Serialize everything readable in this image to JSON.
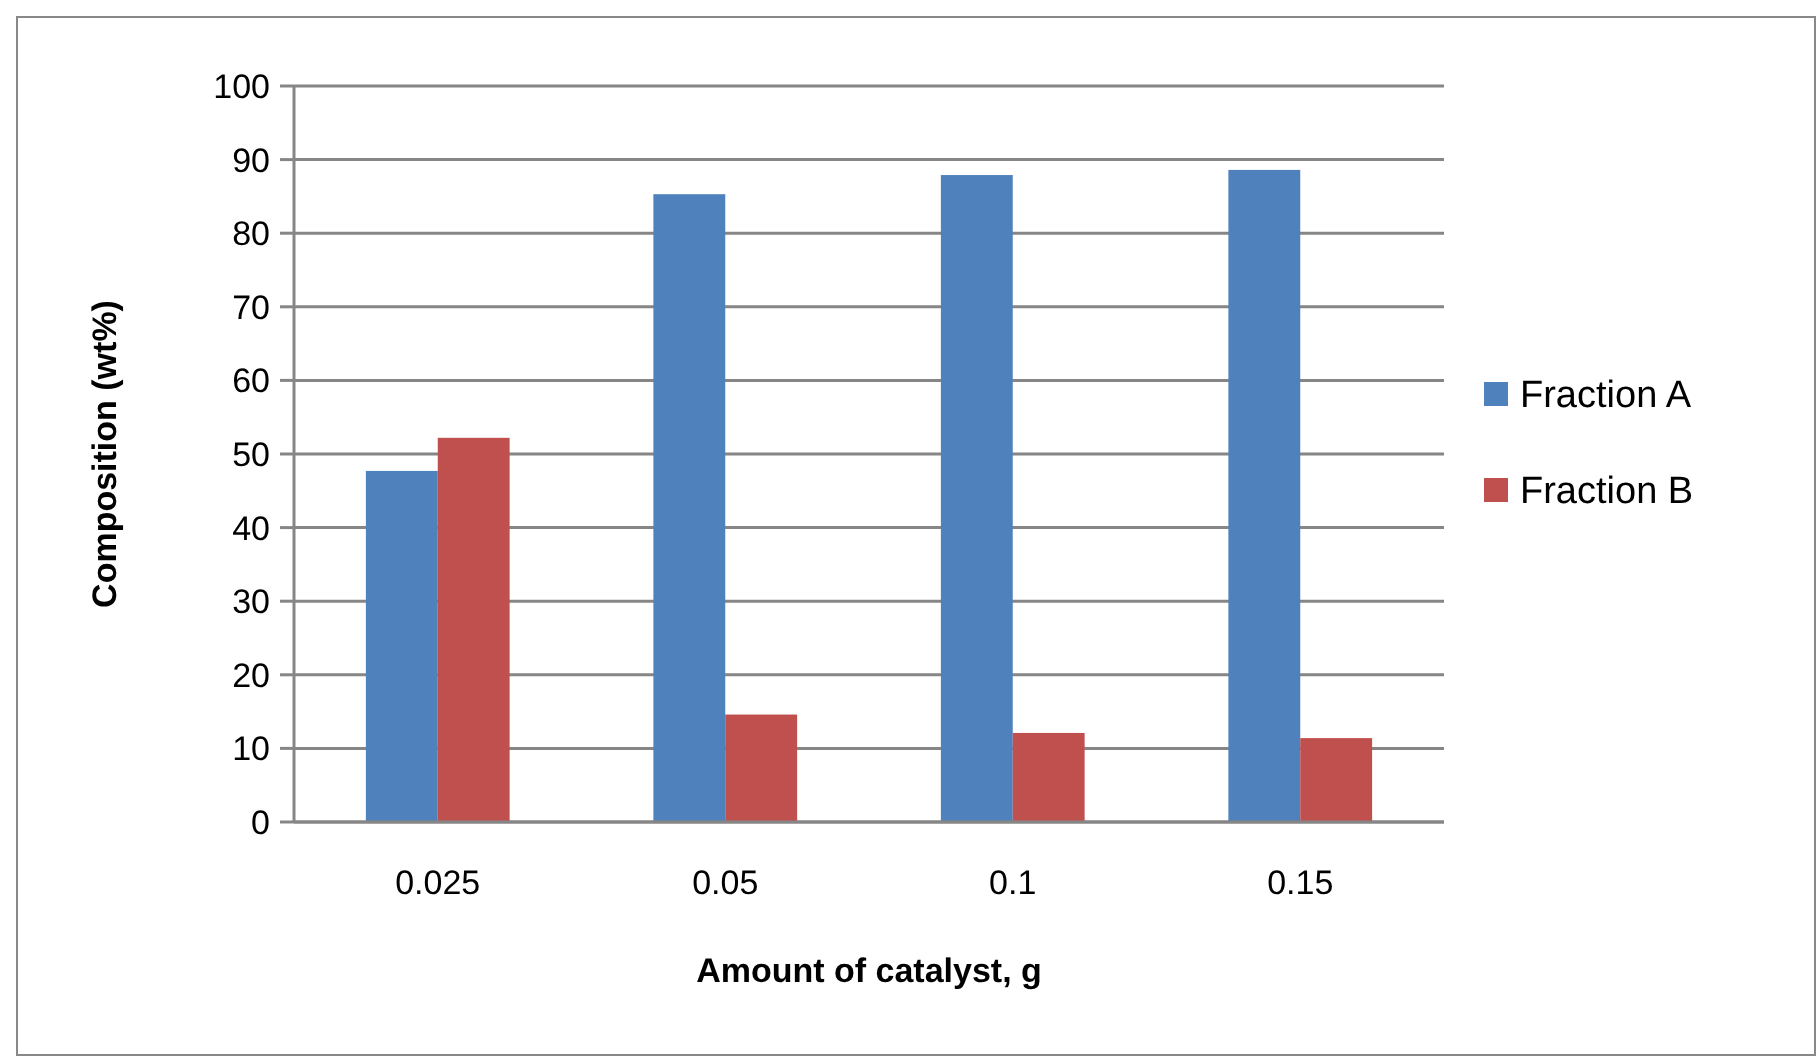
{
  "chart_data": {
    "type": "bar",
    "xlabel": "Amount of catalyst, g",
    "ylabel": "Composition (wt%)",
    "categories": [
      "0.025",
      "0.05",
      "0.1",
      "0.15"
    ],
    "series": [
      {
        "name": "Fraction A",
        "color": "#4f81bd",
        "values": [
          47.7,
          85.3,
          87.9,
          88.6
        ]
      },
      {
        "name": "Fraction B",
        "color": "#c0504d",
        "values": [
          52.2,
          14.6,
          12.1,
          11.4
        ]
      }
    ],
    "ylim": [
      0,
      100
    ],
    "yticks": [
      0,
      10,
      20,
      30,
      40,
      50,
      60,
      70,
      80,
      90,
      100
    ],
    "grid": "y",
    "legend": "right"
  }
}
